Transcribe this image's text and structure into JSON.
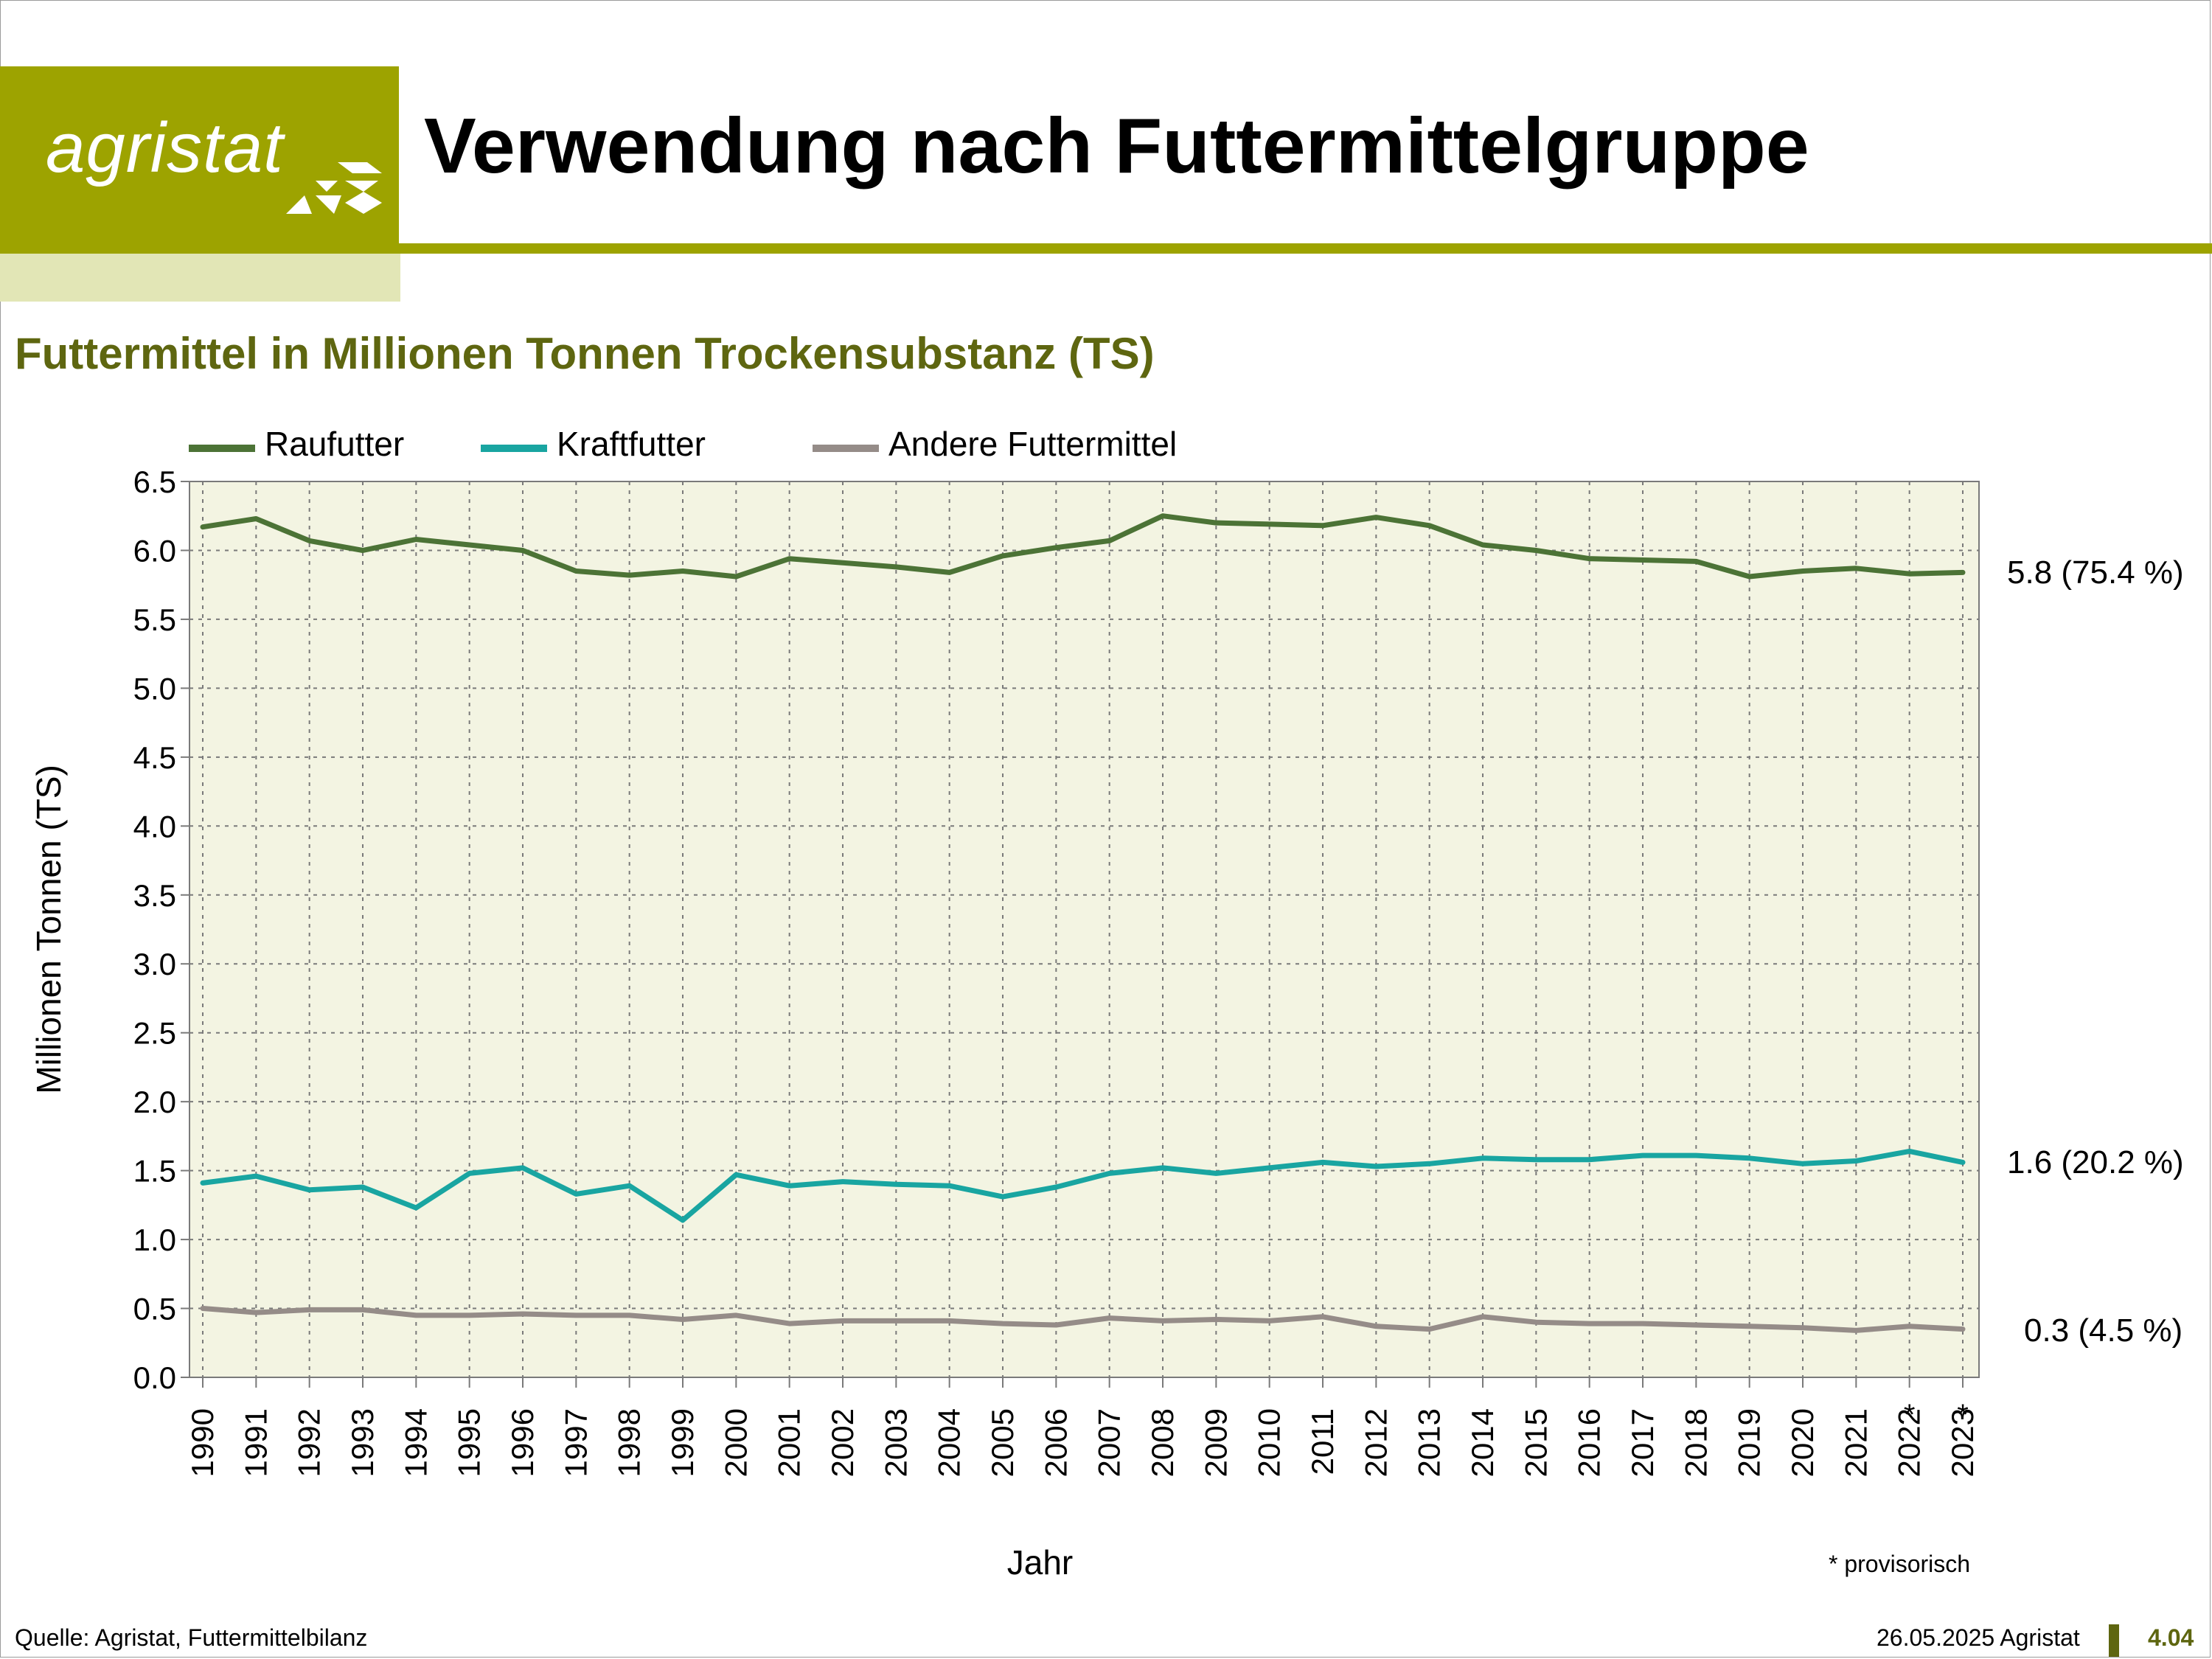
{
  "header": {
    "logo_text": "agristat",
    "title": "Verwendung nach Futtermittelgruppe",
    "subtitle": "Futtermittel in Millionen Tonnen Trockensubstanz (TS)"
  },
  "colors": {
    "brand": "#9da300",
    "subtitle": "#5e6610",
    "plot_bg": "#f3f4e2",
    "raufutter": "#4c7336",
    "kraftfutter": "#19a5a1",
    "andere": "#958c88"
  },
  "chart_data": {
    "type": "line",
    "xlabel": "Jahr",
    "ylabel": "Millionen Tonnen (TS)",
    "ylim": [
      0,
      6.5
    ],
    "yticks": [
      "0.0",
      "0.5",
      "1.0",
      "1.5",
      "2.0",
      "2.5",
      "3.0",
      "3.5",
      "4.0",
      "4.5",
      "5.0",
      "5.5",
      "6.0",
      "6.5"
    ],
    "categories": [
      "1990",
      "1991",
      "1992",
      "1993",
      "1994",
      "1995",
      "1996",
      "1997",
      "1998",
      "1999",
      "2000",
      "2001",
      "2002",
      "2003",
      "2004",
      "2005",
      "2006",
      "2007",
      "2008",
      "2009",
      "2010",
      "2011",
      "2012",
      "2013",
      "2014",
      "2015",
      "2016",
      "2017",
      "2018",
      "2019",
      "2020",
      "2021",
      "2022",
      "2023"
    ],
    "provisional_marker": "*",
    "provisional_categories": [
      "2022",
      "2023"
    ],
    "grid": true,
    "legend_position": "top-left",
    "series": [
      {
        "name": "Raufutter",
        "color": "#4c7336",
        "end_label": "5.8 (75.4 %)",
        "values": [
          6.17,
          6.23,
          6.07,
          6.0,
          6.08,
          6.04,
          6.0,
          5.85,
          5.82,
          5.85,
          5.81,
          5.94,
          5.91,
          5.88,
          5.84,
          5.96,
          6.02,
          6.07,
          6.25,
          6.2,
          6.19,
          6.18,
          6.24,
          6.18,
          6.04,
          6.0,
          5.94,
          5.93,
          5.92,
          5.81,
          5.85,
          5.87,
          5.83,
          5.84
        ]
      },
      {
        "name": "Kraftfutter",
        "color": "#19a5a1",
        "end_label": "1.6 (20.2 %)",
        "values": [
          1.41,
          1.46,
          1.36,
          1.38,
          1.23,
          1.48,
          1.52,
          1.33,
          1.39,
          1.14,
          1.47,
          1.39,
          1.42,
          1.4,
          1.39,
          1.31,
          1.38,
          1.48,
          1.52,
          1.48,
          1.52,
          1.56,
          1.53,
          1.55,
          1.59,
          1.58,
          1.58,
          1.61,
          1.61,
          1.59,
          1.55,
          1.57,
          1.64,
          1.56
        ]
      },
      {
        "name": "Andere Futtermittel",
        "color": "#958c88",
        "end_label": "0.3 (4.5 %)",
        "values": [
          0.5,
          0.47,
          0.49,
          0.49,
          0.45,
          0.45,
          0.46,
          0.45,
          0.45,
          0.42,
          0.45,
          0.39,
          0.41,
          0.41,
          0.41,
          0.39,
          0.38,
          0.43,
          0.41,
          0.42,
          0.41,
          0.44,
          0.37,
          0.35,
          0.44,
          0.4,
          0.39,
          0.39,
          0.38,
          0.37,
          0.36,
          0.34,
          0.37,
          0.35
        ]
      }
    ],
    "footnote": "* provisorisch"
  },
  "footer": {
    "source": "Quelle: Agristat, Futtermittelbilanz",
    "date_org": "26.05.2025 Agristat",
    "page": "4.04"
  }
}
